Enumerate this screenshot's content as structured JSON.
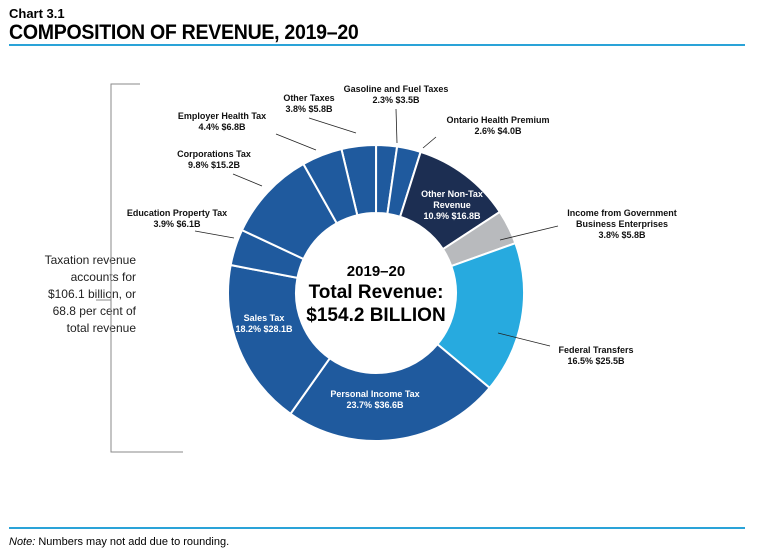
{
  "header": {
    "chart_number": "Chart 3.1",
    "title": "COMPOSITION OF REVENUE, 2019–20"
  },
  "side_note": {
    "lines": [
      "Taxation revenue",
      "accounts for",
      "$106.1 billion, or",
      "68.8 per cent of",
      "total revenue"
    ]
  },
  "footer": {
    "note_label": "Note:",
    "note_text": " Numbers may not add due to rounding."
  },
  "colors": {
    "tax_blue": "#1f5a9e",
    "non_tax_navy": "#1c2e52",
    "gbe_gray": "#b8babd",
    "federal_cyan": "#27aadf",
    "rule_blue": "#2aa3d8"
  },
  "chart_data": {
    "type": "pie",
    "variant": "donut",
    "title": "COMPOSITION OF REVENUE, 2019–20",
    "center_text": [
      "2019–20",
      "Total Revenue:",
      "$154.2 BILLION"
    ],
    "units": "$ billions",
    "slices": [
      {
        "name": "Other Taxes",
        "percent": 3.8,
        "value": 5.8,
        "value_label": "$5.8B",
        "color": "#1f5a9e"
      },
      {
        "name": "Gasoline and Fuel Taxes",
        "percent": 2.3,
        "value": 3.5,
        "value_label": "$3.5B",
        "color": "#1f5a9e"
      },
      {
        "name": "Ontario Health Premium",
        "percent": 2.6,
        "value": 4.0,
        "value_label": "$4.0B",
        "color": "#1f5a9e"
      },
      {
        "name": "Other Non-Tax Revenue",
        "percent": 10.9,
        "value": 16.8,
        "value_label": "$16.8B",
        "color": "#1c2e52"
      },
      {
        "name": "Income from Government Business Enterprises",
        "percent": 3.8,
        "value": 5.8,
        "value_label": "$5.8B",
        "color": "#b8babd"
      },
      {
        "name": "Federal Transfers",
        "percent": 16.5,
        "value": 25.5,
        "value_label": "$25.5B",
        "color": "#27aadf"
      },
      {
        "name": "Personal Income Tax",
        "percent": 23.7,
        "value": 36.6,
        "value_label": "$36.6B",
        "color": "#1f5a9e"
      },
      {
        "name": "Sales Tax",
        "percent": 18.2,
        "value": 28.1,
        "value_label": "$28.1B",
        "color": "#1f5a9e"
      },
      {
        "name": "Education Property Tax",
        "percent": 3.9,
        "value": 6.1,
        "value_label": "$6.1B",
        "color": "#1f5a9e"
      },
      {
        "name": "Corporations Tax",
        "percent": 9.8,
        "value": 15.2,
        "value_label": "$15.2B",
        "color": "#1f5a9e"
      },
      {
        "name": "Employer Health Tax",
        "percent": 4.4,
        "value": 6.8,
        "value_label": "$6.8B",
        "color": "#1f5a9e"
      }
    ]
  }
}
